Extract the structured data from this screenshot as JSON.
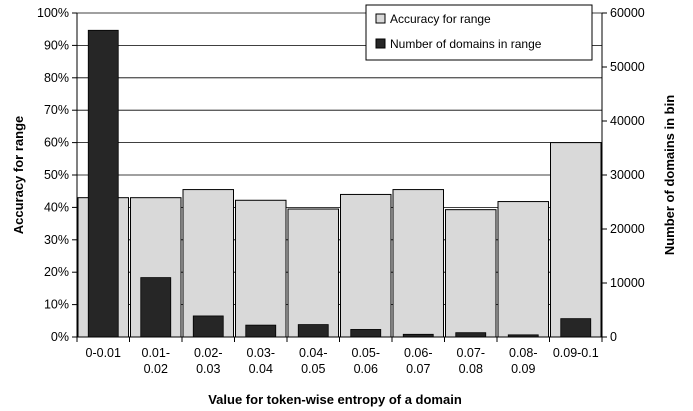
{
  "chart_data": {
    "type": "bar",
    "categories": [
      [
        "0-0.01"
      ],
      [
        "0.01-",
        "0.02"
      ],
      [
        "0.02-",
        "0.03"
      ],
      [
        "0.03-",
        "0.04"
      ],
      [
        "0.04-",
        "0.05"
      ],
      [
        "0.05-",
        "0.06"
      ],
      [
        "0.06-",
        "0.07"
      ],
      [
        "0.07-",
        "0.08"
      ],
      [
        "0.08-",
        "0.09"
      ],
      [
        "0.09-0.1"
      ]
    ],
    "series": [
      {
        "name": "Accuracy for range",
        "axis": "left",
        "color": "#d9d9d9",
        "values": [
          0.43,
          0.43,
          0.455,
          0.422,
          0.395,
          0.44,
          0.455,
          0.393,
          0.418,
          0.6
        ]
      },
      {
        "name": "Number of domains in range",
        "axis": "right",
        "color": "#262626",
        "values": [
          56800,
          11000,
          3900,
          2200,
          2300,
          1400,
          500,
          800,
          400,
          3400
        ]
      }
    ],
    "xlabel": "Value for token-wise entropy of a domain",
    "ylabel": "Accuracy for range",
    "y2label": "Number of domains in bin",
    "ylim": [
      0,
      1
    ],
    "y2lim": [
      0,
      60000
    ],
    "yticks": [
      "0%",
      "10%",
      "20%",
      "30%",
      "40%",
      "50%",
      "60%",
      "70%",
      "80%",
      "90%",
      "100%"
    ],
    "y2ticks": [
      "0",
      "10000",
      "20000",
      "30000",
      "40000",
      "50000",
      "60000"
    ],
    "grid": true,
    "legend": "top-right"
  }
}
